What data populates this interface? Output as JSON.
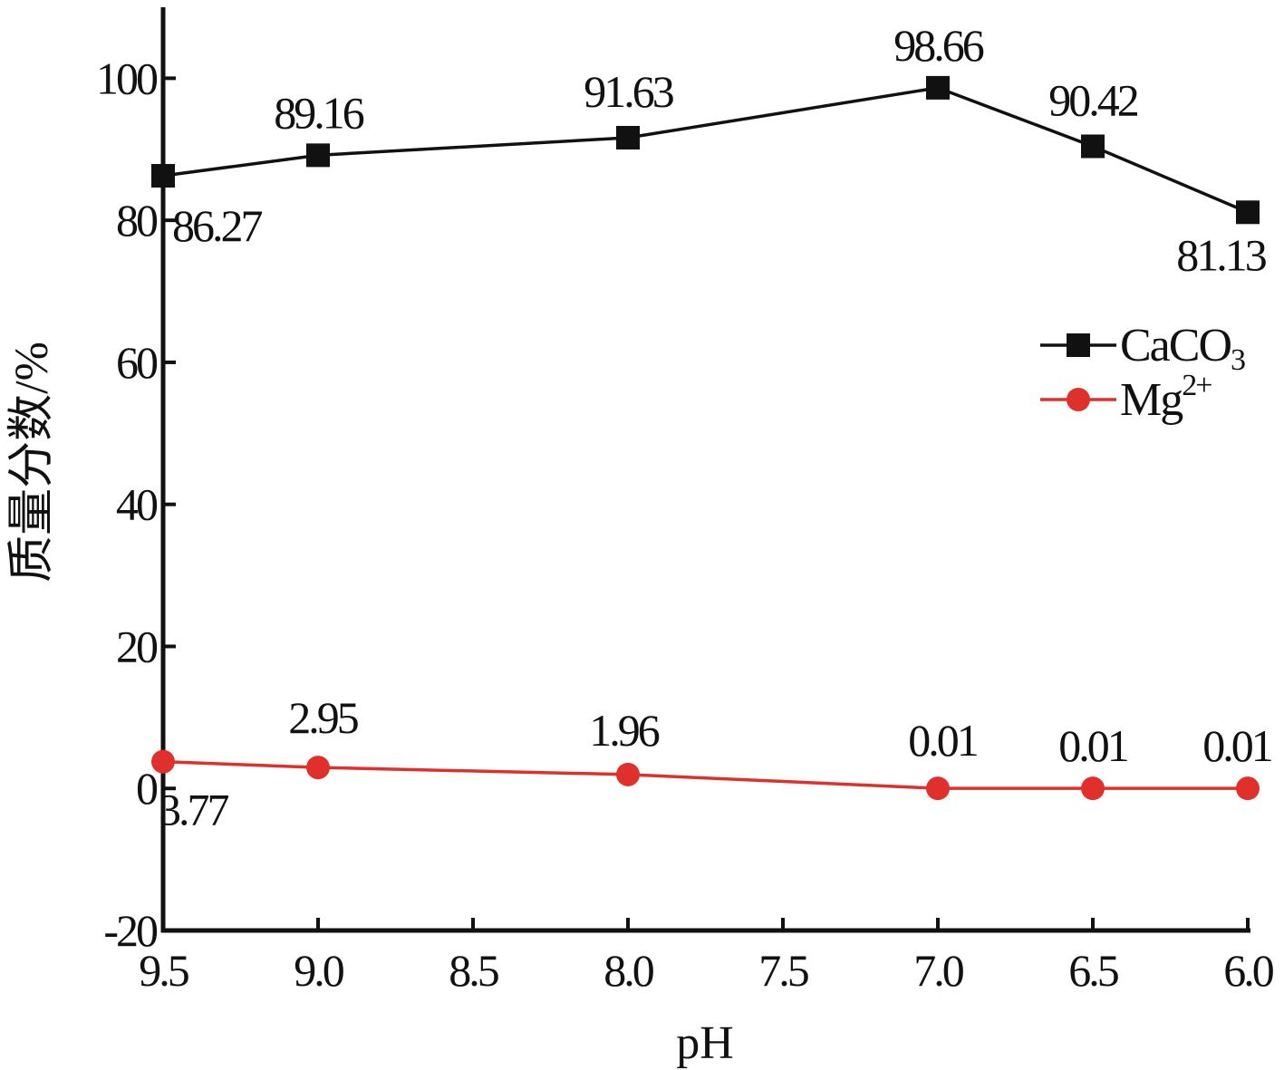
{
  "chart_data": {
    "type": "line",
    "xlabel": "pH",
    "ylabel": "质量分数/%",
    "x_reversed": true,
    "xlim": [
      9.5,
      6.0
    ],
    "ylim": [
      -20,
      110
    ],
    "x_ticks": [
      "9.5",
      "9.0",
      "8.5",
      "8.0",
      "7.5",
      "7.0",
      "6.5",
      "6.0"
    ],
    "y_ticks": [
      "-20",
      "0",
      "20",
      "40",
      "60",
      "80",
      "100"
    ],
    "x": [
      9.5,
      9.0,
      8.0,
      7.0,
      6.5,
      6.0
    ],
    "series": [
      {
        "name": "CaCO₃",
        "legend_base": "CaCO",
        "legend_sub": "3",
        "color": "#111111",
        "marker": "square",
        "values": [
          86.27,
          89.16,
          91.63,
          98.66,
          90.42,
          81.13
        ],
        "labels": [
          "86.27",
          "89.16",
          "91.63",
          "98.66",
          "90.42",
          "81.13"
        ]
      },
      {
        "name": "Mg²⁺",
        "legend_base": "Mg",
        "legend_sup": "2+",
        "color": "#e0302c",
        "marker": "circle",
        "values": [
          3.77,
          2.95,
          1.96,
          0.01,
          0.01,
          0.01
        ],
        "labels": [
          "3.77",
          "2.95",
          "1.96",
          "0.01",
          "0.01",
          "0.01"
        ]
      }
    ],
    "grid": false,
    "legend": "right"
  }
}
